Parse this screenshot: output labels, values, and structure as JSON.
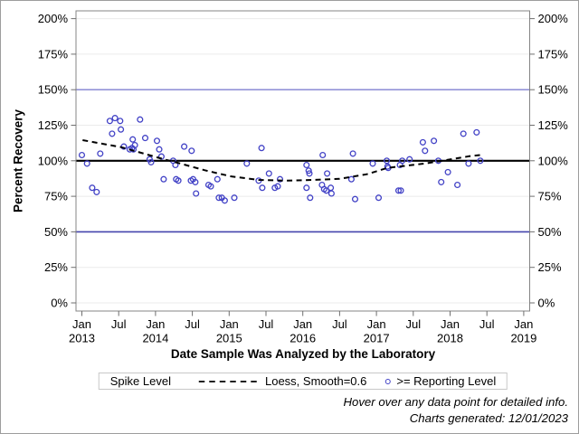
{
  "chart_data": {
    "type": "scatter",
    "title": "",
    "xlabel": "Date Sample Was Analyzed by the Laboratory",
    "ylabel": "Percent Recovery",
    "x_axis": {
      "min": 2012.92,
      "max": 2019.08,
      "grid": false,
      "ticks": [
        {
          "x": 2013.0,
          "label": "Jan",
          "year": "2013"
        },
        {
          "x": 2013.5,
          "label": "Jul",
          "year": ""
        },
        {
          "x": 2014.0,
          "label": "Jan",
          "year": "2014"
        },
        {
          "x": 2014.5,
          "label": "Jul",
          "year": ""
        },
        {
          "x": 2015.0,
          "label": "Jan",
          "year": "2015"
        },
        {
          "x": 2015.5,
          "label": "Jul",
          "year": ""
        },
        {
          "x": 2016.0,
          "label": "Jan",
          "year": "2016"
        },
        {
          "x": 2016.5,
          "label": "Jul",
          "year": ""
        },
        {
          "x": 2017.0,
          "label": "Jan",
          "year": "2017"
        },
        {
          "x": 2017.5,
          "label": "Jul",
          "year": ""
        },
        {
          "x": 2018.0,
          "label": "Jan",
          "year": "2018"
        },
        {
          "x": 2018.5,
          "label": "Jul",
          "year": ""
        },
        {
          "x": 2019.0,
          "label": "Jan",
          "year": "2019"
        }
      ]
    },
    "y_axis": {
      "min": 0,
      "max": 200,
      "grid": true,
      "ticks": [
        {
          "value": 0,
          "label": "0%"
        },
        {
          "value": 25,
          "label": "25%"
        },
        {
          "value": 50,
          "label": "50%"
        },
        {
          "value": 75,
          "label": "75%"
        },
        {
          "value": 100,
          "label": "100%"
        },
        {
          "value": 125,
          "label": "125%"
        },
        {
          "value": 150,
          "label": "150%"
        },
        {
          "value": 175,
          "label": "175%"
        },
        {
          "value": 200,
          "label": "200%"
        }
      ]
    },
    "ref_lines": [
      {
        "value": 150,
        "color": "#9393d8",
        "width": 1.6
      },
      {
        "value": 50,
        "color": "#4545ad",
        "width": 1.6
      },
      {
        "value": 100,
        "color": "#000000",
        "width": 2.2
      }
    ],
    "series": [
      {
        "name": ">= Reporting Level",
        "type": "scatter",
        "marker": "open-circle",
        "color": "#4242c6",
        "points": [
          [
            2013.0,
            104
          ],
          [
            2013.07,
            98
          ],
          [
            2013.14,
            81
          ],
          [
            2013.2,
            78
          ],
          [
            2013.25,
            105
          ],
          [
            2013.38,
            128
          ],
          [
            2013.41,
            119
          ],
          [
            2013.45,
            130
          ],
          [
            2013.52,
            128
          ],
          [
            2013.53,
            122
          ],
          [
            2013.57,
            110
          ],
          [
            2013.65,
            108
          ],
          [
            2013.68,
            109
          ],
          [
            2013.69,
            115
          ],
          [
            2013.7,
            108
          ],
          [
            2013.72,
            111
          ],
          [
            2013.79,
            129
          ],
          [
            2013.86,
            116
          ],
          [
            2013.92,
            101
          ],
          [
            2013.94,
            99
          ],
          [
            2014.02,
            114
          ],
          [
            2014.05,
            108
          ],
          [
            2014.08,
            103
          ],
          [
            2014.11,
            87
          ],
          [
            2014.24,
            100
          ],
          [
            2014.27,
            97
          ],
          [
            2014.28,
            87
          ],
          [
            2014.31,
            86
          ],
          [
            2014.39,
            110
          ],
          [
            2014.48,
            86
          ],
          [
            2014.49,
            107
          ],
          [
            2014.51,
            87
          ],
          [
            2014.54,
            85
          ],
          [
            2014.55,
            77
          ],
          [
            2014.72,
            83
          ],
          [
            2014.75,
            82
          ],
          [
            2014.84,
            87
          ],
          [
            2014.86,
            74
          ],
          [
            2014.9,
            74
          ],
          [
            2014.94,
            72
          ],
          [
            2015.07,
            74
          ],
          [
            2015.24,
            98
          ],
          [
            2015.4,
            86
          ],
          [
            2015.44,
            109
          ],
          [
            2015.45,
            81
          ],
          [
            2015.54,
            91
          ],
          [
            2015.62,
            81
          ],
          [
            2015.66,
            82
          ],
          [
            2015.69,
            87
          ],
          [
            2016.05,
            97
          ],
          [
            2016.05,
            81
          ],
          [
            2016.08,
            93
          ],
          [
            2016.09,
            91
          ],
          [
            2016.1,
            74
          ],
          [
            2016.26,
            83
          ],
          [
            2016.27,
            104
          ],
          [
            2016.29,
            80
          ],
          [
            2016.32,
            79
          ],
          [
            2016.33,
            91
          ],
          [
            2016.38,
            81
          ],
          [
            2016.39,
            77
          ],
          [
            2016.66,
            87
          ],
          [
            2016.68,
            105
          ],
          [
            2016.71,
            73
          ],
          [
            2016.95,
            98
          ],
          [
            2017.03,
            74
          ],
          [
            2017.14,
            100
          ],
          [
            2017.15,
            96
          ],
          [
            2017.16,
            95
          ],
          [
            2017.3,
            79
          ],
          [
            2017.32,
            97
          ],
          [
            2017.33,
            79
          ],
          [
            2017.35,
            100
          ],
          [
            2017.45,
            101
          ],
          [
            2017.63,
            113
          ],
          [
            2017.66,
            107
          ],
          [
            2017.78,
            114
          ],
          [
            2017.84,
            100
          ],
          [
            2017.88,
            85
          ],
          [
            2017.97,
            92
          ],
          [
            2018.1,
            83
          ],
          [
            2018.18,
            119
          ],
          [
            2018.25,
            98
          ],
          [
            2018.36,
            120
          ],
          [
            2018.41,
            100
          ]
        ]
      },
      {
        "name": "Loess, Smooth=0.6",
        "type": "line",
        "style": "dashed",
        "color": "#000000",
        "points": [
          [
            2013.01,
            114.5
          ],
          [
            2013.53,
            109.6
          ],
          [
            2013.86,
            104.8
          ],
          [
            2014.11,
            101.1
          ],
          [
            2014.27,
            99.0
          ],
          [
            2014.67,
            93.3
          ],
          [
            2014.84,
            91.2
          ],
          [
            2015.03,
            89.0
          ],
          [
            2015.4,
            86.5
          ],
          [
            2015.77,
            86.0
          ],
          [
            2016.14,
            86.5
          ],
          [
            2016.5,
            87.3
          ],
          [
            2016.87,
            90.5
          ],
          [
            2017.15,
            95.0
          ],
          [
            2017.4,
            96.5
          ],
          [
            2017.65,
            98.0
          ],
          [
            2017.86,
            99.7
          ],
          [
            2018.07,
            101.5
          ],
          [
            2018.26,
            103.2
          ],
          [
            2018.41,
            104.0
          ]
        ]
      }
    ],
    "legend": {
      "position": "bottom",
      "title": "Spike Level",
      "items": [
        {
          "swatch": "dashed-line",
          "label": "Loess, Smooth=0.6"
        },
        {
          "swatch": "open-circle",
          "label": ">= Reporting Level"
        }
      ]
    },
    "colors": {
      "marker": "#4242c6",
      "gridline": "#ebebeb",
      "plot_border": "#848484",
      "tick": "#6f6f6f",
      "upper_ref": "#9393d8",
      "lower_ref": "#4545ad",
      "spike_ref": "#000000"
    }
  },
  "footnotes": {
    "line1": "Hover over any data point for detailed info.",
    "line2": "Charts generated: 12/01/2023"
  }
}
